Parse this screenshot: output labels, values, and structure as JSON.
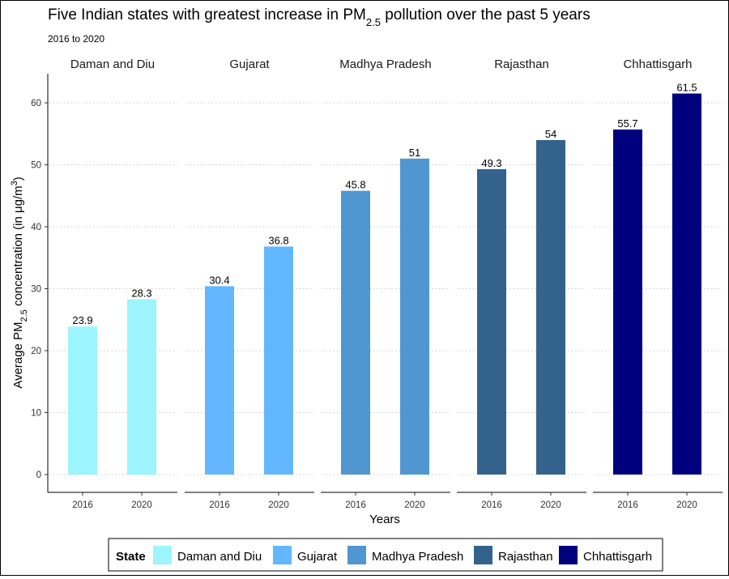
{
  "chart_data": {
    "type": "bar",
    "title": "Five Indian states with greatest increase in PM",
    "title_subscript": "2.5",
    "title_suffix": " pollution over the past 5 years",
    "subtitle": "2016 to 2020",
    "xlabel": "Years",
    "ylabel_prefix": "Average PM",
    "ylabel_subscript": "2.5",
    "ylabel_suffix": " concentration (in μg/m",
    "ylabel_superscript": "3",
    "ylabel_close": ")",
    "ylim": [
      0,
      65
    ],
    "yticks": [
      0,
      10,
      20,
      30,
      40,
      50,
      60
    ],
    "grid": "horizontal-dotted",
    "legend": {
      "title": "State",
      "position": "bottom",
      "entries": [
        "Daman and Diu",
        "Gujarat",
        "Madhya Pradesh",
        "Rajasthan",
        "Chhattisgarh"
      ]
    },
    "categories": [
      "2016",
      "2020"
    ],
    "series": [
      {
        "name": "Daman and Diu",
        "color": "#9bf4fe",
        "values": [
          23.9,
          28.3
        ],
        "labels": [
          "23.9",
          "28.3"
        ]
      },
      {
        "name": "Gujarat",
        "color": "#63b7ff",
        "values": [
          30.4,
          36.8
        ],
        "labels": [
          "30.4",
          "36.8"
        ]
      },
      {
        "name": "Madhya Pradesh",
        "color": "#5096d1",
        "values": [
          45.8,
          51
        ],
        "labels": [
          "45.8",
          "51"
        ]
      },
      {
        "name": "Rajasthan",
        "color": "#33638c",
        "values": [
          49.3,
          54
        ],
        "labels": [
          "49.3",
          "54"
        ]
      },
      {
        "name": "Chhattisgarh",
        "color": "#00007f",
        "values": [
          55.7,
          61.5
        ],
        "labels": [
          "55.7",
          "61.5"
        ]
      }
    ]
  }
}
